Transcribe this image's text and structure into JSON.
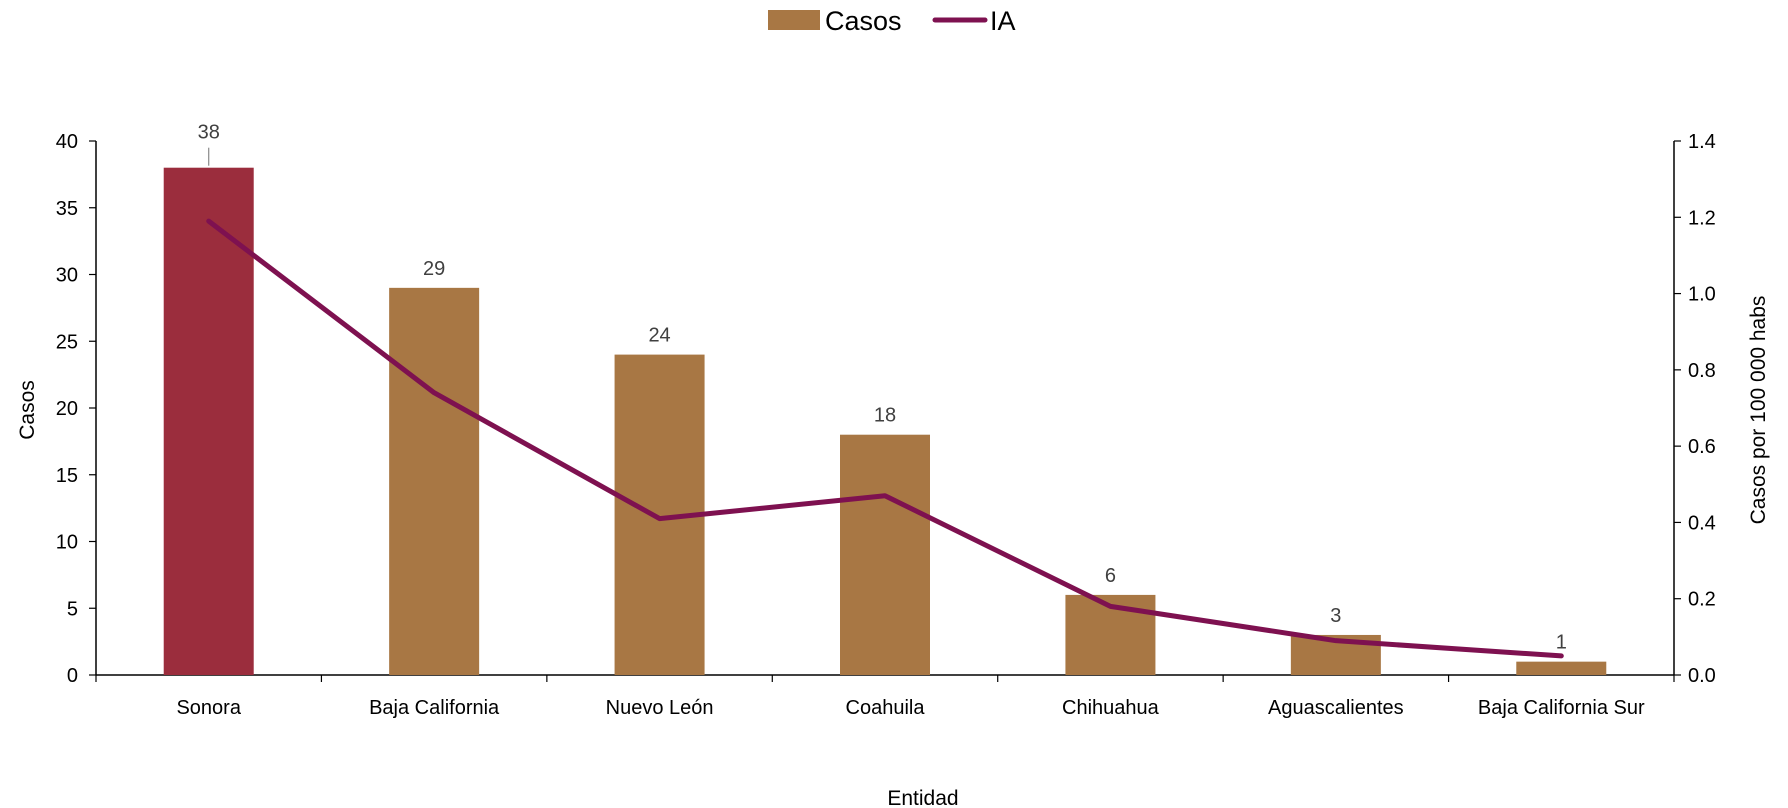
{
  "chart_data": {
    "type": "bar",
    "categories": [
      "Sonora",
      "Baja California",
      "Nuevo León",
      "Coahuila",
      "Chihuahua",
      "Aguascalientes",
      "Baja California Sur"
    ],
    "series": [
      {
        "name": "Casos",
        "type": "bar",
        "axis": "left",
        "values": [
          38,
          29,
          24,
          18,
          6,
          3,
          1
        ],
        "data_labels": [
          "38",
          "29",
          "24",
          "18",
          "6",
          "3",
          "1"
        ],
        "color": "#A87744",
        "highlight": {
          "index": 0,
          "color": "#9B2D3D"
        }
      },
      {
        "name": "IA",
        "type": "line",
        "axis": "right",
        "values": [
          1.19,
          0.74,
          0.41,
          0.47,
          0.18,
          0.09,
          0.05
        ],
        "color": "#7E1150"
      }
    ],
    "xlabel": "Entidad",
    "ylabel": "Casos",
    "y2label": "Casos por 100 000 habs",
    "ylim": [
      0,
      40
    ],
    "y2lim": [
      0,
      1.4
    ],
    "yticks": [
      "0",
      "5",
      "10",
      "15",
      "20",
      "25",
      "30",
      "35",
      "40"
    ],
    "y2ticks": [
      "0.0",
      "0.2",
      "0.4",
      "0.6",
      "0.8",
      "1.0",
      "1.2",
      "1.4"
    ],
    "legend": {
      "position": "top-center",
      "items": [
        "Casos",
        "IA"
      ]
    },
    "grid": false
  }
}
